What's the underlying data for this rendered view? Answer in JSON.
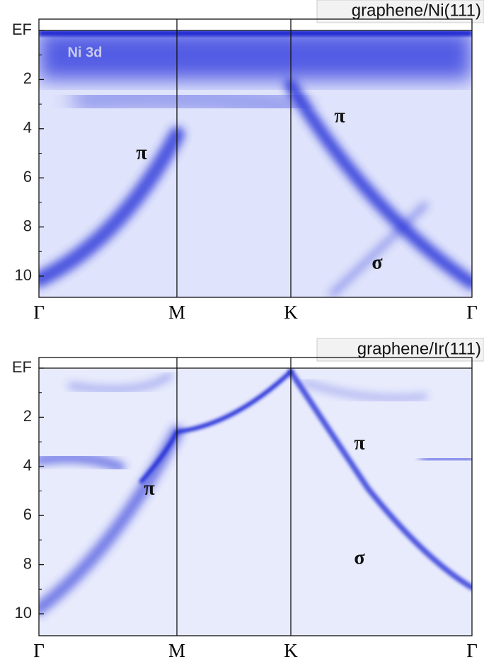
{
  "figure": {
    "panels": [
      {
        "title": "graphene/Ni(111)",
        "yticks": [
          {
            "value": 0,
            "label": "EF"
          },
          2,
          4,
          6,
          8,
          10
        ],
        "yminor": [
          1,
          3,
          5,
          7,
          9
        ],
        "kpoints": [
          "Γ",
          "M",
          "K",
          "Γ"
        ],
        "annotations": [
          "Ni 3d",
          "π",
          "π",
          "σ"
        ]
      },
      {
        "title": "graphene/Ir(111)",
        "yticks": [
          {
            "value": 0,
            "label": "EF"
          },
          2,
          4,
          6,
          8,
          10
        ],
        "yminor": [
          1,
          3,
          5,
          7,
          9
        ],
        "kpoints": [
          "Γ",
          "M",
          "K",
          "Γ"
        ],
        "annotations": [
          "π",
          "π",
          "σ"
        ]
      }
    ]
  }
}
